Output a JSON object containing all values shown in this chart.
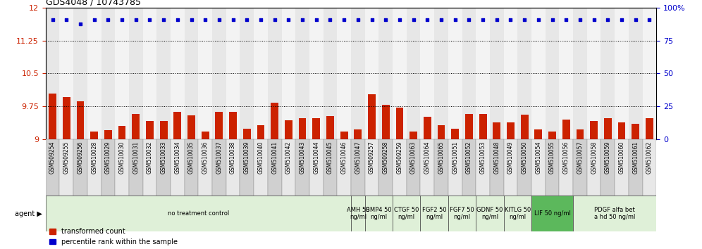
{
  "title": "GDS4048 / 10743785",
  "samples": [
    "GSM509254",
    "GSM509255",
    "GSM509256",
    "GSM510028",
    "GSM510029",
    "GSM510030",
    "GSM510031",
    "GSM510032",
    "GSM510033",
    "GSM510034",
    "GSM510035",
    "GSM510036",
    "GSM510037",
    "GSM510038",
    "GSM510039",
    "GSM510040",
    "GSM510041",
    "GSM510042",
    "GSM510043",
    "GSM510044",
    "GSM510045",
    "GSM510046",
    "GSM510047",
    "GSM509257",
    "GSM509258",
    "GSM509259",
    "GSM510063",
    "GSM510064",
    "GSM510065",
    "GSM510051",
    "GSM510052",
    "GSM510053",
    "GSM510048",
    "GSM510049",
    "GSM510050",
    "GSM510054",
    "GSM510055",
    "GSM510056",
    "GSM510057",
    "GSM510058",
    "GSM510059",
    "GSM510060",
    "GSM510061",
    "GSM510062"
  ],
  "bar_values": [
    10.05,
    9.97,
    9.87,
    9.18,
    9.21,
    9.31,
    9.58,
    9.42,
    9.42,
    9.62,
    9.55,
    9.18,
    9.62,
    9.62,
    9.25,
    9.32,
    9.83,
    9.43,
    9.48,
    9.48,
    9.53,
    9.18,
    9.22,
    10.02,
    9.79,
    9.72,
    9.18,
    9.52,
    9.32,
    9.25,
    9.58,
    9.58,
    9.38,
    9.38,
    9.57,
    9.22,
    9.18,
    9.45,
    9.22,
    9.42,
    9.48,
    9.38,
    9.35,
    9.48
  ],
  "dot_values": [
    11.72,
    11.72,
    11.62,
    11.72,
    11.72,
    11.72,
    11.72,
    11.72,
    11.72,
    11.72,
    11.72,
    11.72,
    11.72,
    11.72,
    11.72,
    11.72,
    11.72,
    11.72,
    11.72,
    11.72,
    11.72,
    11.72,
    11.72,
    11.72,
    11.72,
    11.72,
    11.72,
    11.72,
    11.72,
    11.72,
    11.72,
    11.72,
    11.72,
    11.72,
    11.72,
    11.72,
    11.72,
    11.72,
    11.72,
    11.72,
    11.72,
    11.72,
    11.72,
    11.72
  ],
  "ylim": [
    9.0,
    12.0
  ],
  "yticks_left": [
    9.0,
    9.75,
    10.5,
    11.25,
    12.0
  ],
  "ytick_labels_left": [
    "9",
    "9.75",
    "10.5",
    "11.25",
    "12"
  ],
  "right_tick_positions": [
    9.0,
    9.75,
    10.5,
    11.25,
    12.0
  ],
  "right_tick_labels": [
    "0",
    "25",
    "50",
    "75",
    "100%"
  ],
  "bar_color": "#cc2200",
  "dot_color": "#0000cc",
  "bar_bottom": 9.0,
  "agent_groups": [
    {
      "label": "no treatment control",
      "start": 0,
      "end": 22,
      "bg": "#dff0d8"
    },
    {
      "label": "AMH 50\nng/ml",
      "start": 22,
      "end": 23,
      "bg": "#dff0d8"
    },
    {
      "label": "BMP4 50\nng/ml",
      "start": 23,
      "end": 25,
      "bg": "#dff0d8"
    },
    {
      "label": "CTGF 50\nng/ml",
      "start": 25,
      "end": 27,
      "bg": "#dff0d8"
    },
    {
      "label": "FGF2 50\nng/ml",
      "start": 27,
      "end": 29,
      "bg": "#dff0d8"
    },
    {
      "label": "FGF7 50\nng/ml",
      "start": 29,
      "end": 31,
      "bg": "#dff0d8"
    },
    {
      "label": "GDNF 50\nng/ml",
      "start": 31,
      "end": 33,
      "bg": "#dff0d8"
    },
    {
      "label": "KITLG 50\nng/ml",
      "start": 33,
      "end": 35,
      "bg": "#dff0d8"
    },
    {
      "label": "LIF 50 ng/ml",
      "start": 35,
      "end": 38,
      "bg": "#5cb85c"
    },
    {
      "label": "PDGF alfa bet\na hd 50 ng/ml",
      "start": 38,
      "end": 44,
      "bg": "#dff0d8"
    }
  ],
  "bar_width": 0.55,
  "tick_label_fontsize": 5.5,
  "axis_label_color_left": "#cc2200",
  "axis_label_color_right": "#0000cc",
  "col_bg_even": "#d0d0d0",
  "col_bg_odd": "#e8e8e8"
}
